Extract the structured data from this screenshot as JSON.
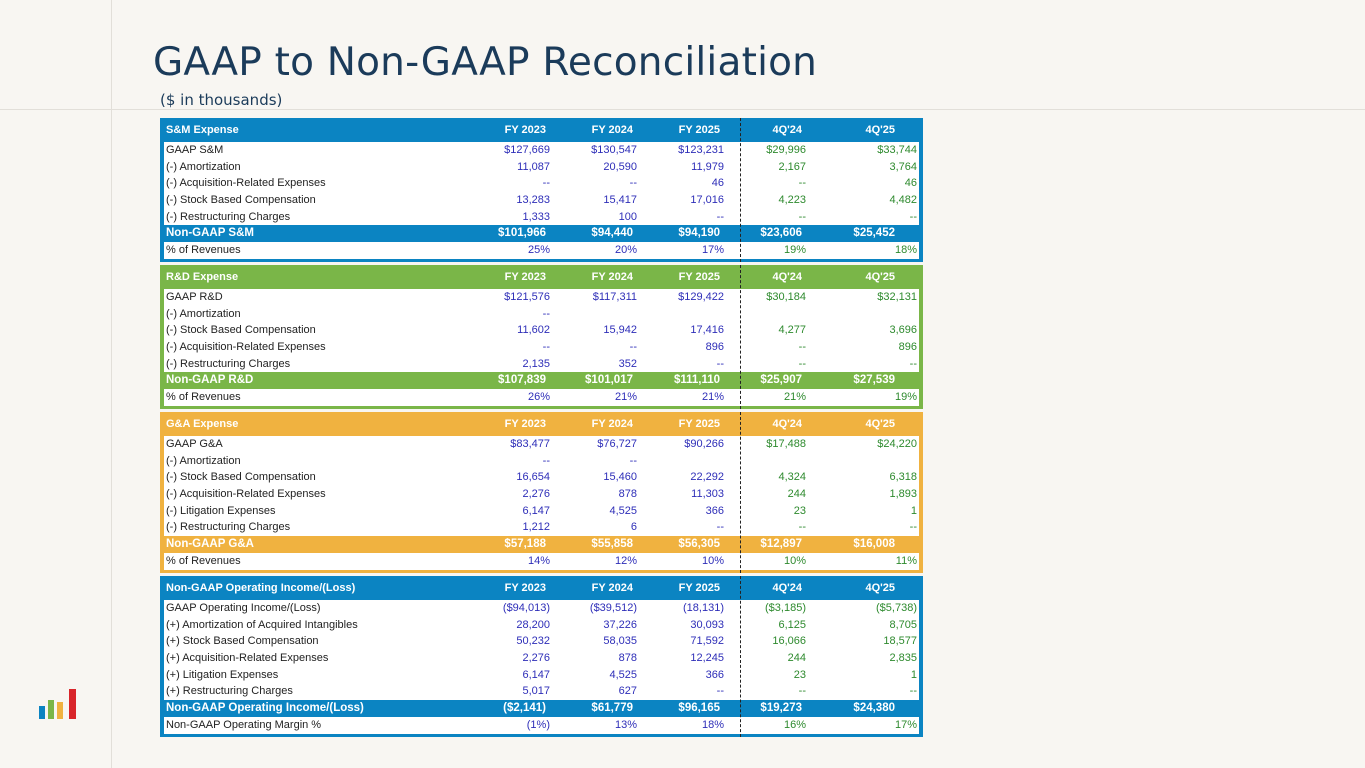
{
  "title": "GAAP to Non-GAAP Reconciliation",
  "subtitle": "($ in thousands)",
  "columns": [
    "FY 2023",
    "FY 2024",
    "FY 2025",
    "4Q'24",
    "4Q'25"
  ],
  "colors": {
    "sm": "#0b84c2",
    "rd": "#7ab648",
    "ga": "#f0b240",
    "op": "#0b84c2",
    "title": "#1b3b5a",
    "fy_values": "#2e2eb8",
    "q_values": "#2e8a2e"
  },
  "logo_icon": "bar-chart-logo-icon",
  "sections": [
    {
      "key": "sm",
      "header": "S&M Expense",
      "rows": [
        {
          "label": "GAAP S&M",
          "values": [
            "$127,669",
            "$130,547",
            "$123,231",
            "$29,996",
            "$33,744"
          ]
        },
        {
          "label": "(-) Amortization",
          "values": [
            "11,087",
            "20,590",
            "11,979",
            "2,167",
            "3,764"
          ]
        },
        {
          "label": "(-) Acquisition-Related Expenses",
          "values": [
            "--",
            "--",
            "46",
            "--",
            "46"
          ]
        },
        {
          "label": "(-) Stock Based Compensation",
          "values": [
            "13,283",
            "15,417",
            "17,016",
            "4,223",
            "4,482"
          ]
        },
        {
          "label": "(-) Restructuring Charges",
          "values": [
            "1,333",
            "100",
            "--",
            "--",
            "--"
          ]
        }
      ],
      "total": {
        "label": "Non-GAAP S&M",
        "values": [
          "$101,966",
          "$94,440",
          "$94,190",
          "$23,606",
          "$25,452"
        ]
      },
      "pct": {
        "label": "% of Revenues",
        "values": [
          "25%",
          "20%",
          "17%",
          "19%",
          "18%"
        ]
      }
    },
    {
      "key": "rd",
      "header": "R&D Expense",
      "rows": [
        {
          "label": "GAAP R&D",
          "values": [
            "$121,576",
            "$117,311",
            "$129,422",
            "$30,184",
            "$32,131"
          ]
        },
        {
          "label": "(-) Amortization",
          "values": [
            "--",
            "",
            "",
            "",
            ""
          ]
        },
        {
          "label": "(-) Stock Based Compensation",
          "values": [
            "11,602",
            "15,942",
            "17,416",
            "4,277",
            "3,696"
          ]
        },
        {
          "label": "(-) Acquisition-Related Expenses",
          "values": [
            "--",
            "--",
            "896",
            "--",
            "896"
          ]
        },
        {
          "label": "(-) Restructuring Charges",
          "values": [
            "2,135",
            "352",
            "--",
            "--",
            "--"
          ]
        }
      ],
      "total": {
        "label": "Non-GAAP R&D",
        "values": [
          "$107,839",
          "$101,017",
          "$111,110",
          "$25,907",
          "$27,539"
        ]
      },
      "pct": {
        "label": "% of Revenues",
        "values": [
          "26%",
          "21%",
          "21%",
          "21%",
          "19%"
        ]
      }
    },
    {
      "key": "ga",
      "header": "G&A Expense",
      "rows": [
        {
          "label": "GAAP G&A",
          "values": [
            "$83,477",
            "$76,727",
            "$90,266",
            "$17,488",
            "$24,220"
          ]
        },
        {
          "label": "(-) Amortization",
          "values": [
            "--",
            "--",
            "",
            "",
            ""
          ]
        },
        {
          "label": "(-) Stock Based Compensation",
          "values": [
            "16,654",
            "15,460",
            "22,292",
            "4,324",
            "6,318"
          ]
        },
        {
          "label": "(-) Acquisition-Related Expenses",
          "values": [
            "2,276",
            "878",
            "11,303",
            "244",
            "1,893"
          ]
        },
        {
          "label": "(-) Litigation Expenses",
          "values": [
            "6,147",
            "4,525",
            "366",
            "23",
            "1"
          ]
        },
        {
          "label": "(-) Restructuring Charges",
          "values": [
            "1,212",
            "6",
            "--",
            "--",
            "--"
          ]
        }
      ],
      "total": {
        "label": "Non-GAAP G&A",
        "values": [
          "$57,188",
          "$55,858",
          "$56,305",
          "$12,897",
          "$16,008"
        ]
      },
      "pct": {
        "label": "% of Revenues",
        "values": [
          "14%",
          "12%",
          "10%",
          "10%",
          "11%"
        ]
      }
    },
    {
      "key": "op",
      "header": "Non-GAAP Operating Income/(Loss)",
      "rows": [
        {
          "label": "GAAP Operating Income/(Loss)",
          "values": [
            "($94,013)",
            "($39,512)",
            "(18,131)",
            "($3,185)",
            "($5,738)"
          ]
        },
        {
          "label": "(+) Amortization of Acquired Intangibles",
          "values": [
            "28,200",
            "37,226",
            "30,093",
            "6,125",
            "8,705"
          ]
        },
        {
          "label": "(+) Stock Based Compensation",
          "values": [
            "50,232",
            "58,035",
            "71,592",
            "16,066",
            "18,577"
          ]
        },
        {
          "label": "(+) Acquisition-Related Expenses",
          "values": [
            "2,276",
            "878",
            "12,245",
            "244",
            "2,835"
          ]
        },
        {
          "label": "(+) Litigation Expenses",
          "values": [
            "6,147",
            "4,525",
            "366",
            "23",
            "1"
          ]
        },
        {
          "label": "(+) Restructuring Charges",
          "values": [
            "5,017",
            "627",
            "--",
            "--",
            "--"
          ]
        }
      ],
      "total": {
        "label": "Non-GAAP Operating Income/(Loss)",
        "values": [
          "($2,141)",
          "$61,779",
          "$96,165",
          "$19,273",
          "$24,380"
        ]
      },
      "pct": {
        "label": "Non-GAAP Operating Margin %",
        "values": [
          "(1%)",
          "13%",
          "18%",
          "16%",
          "17%"
        ]
      }
    }
  ]
}
